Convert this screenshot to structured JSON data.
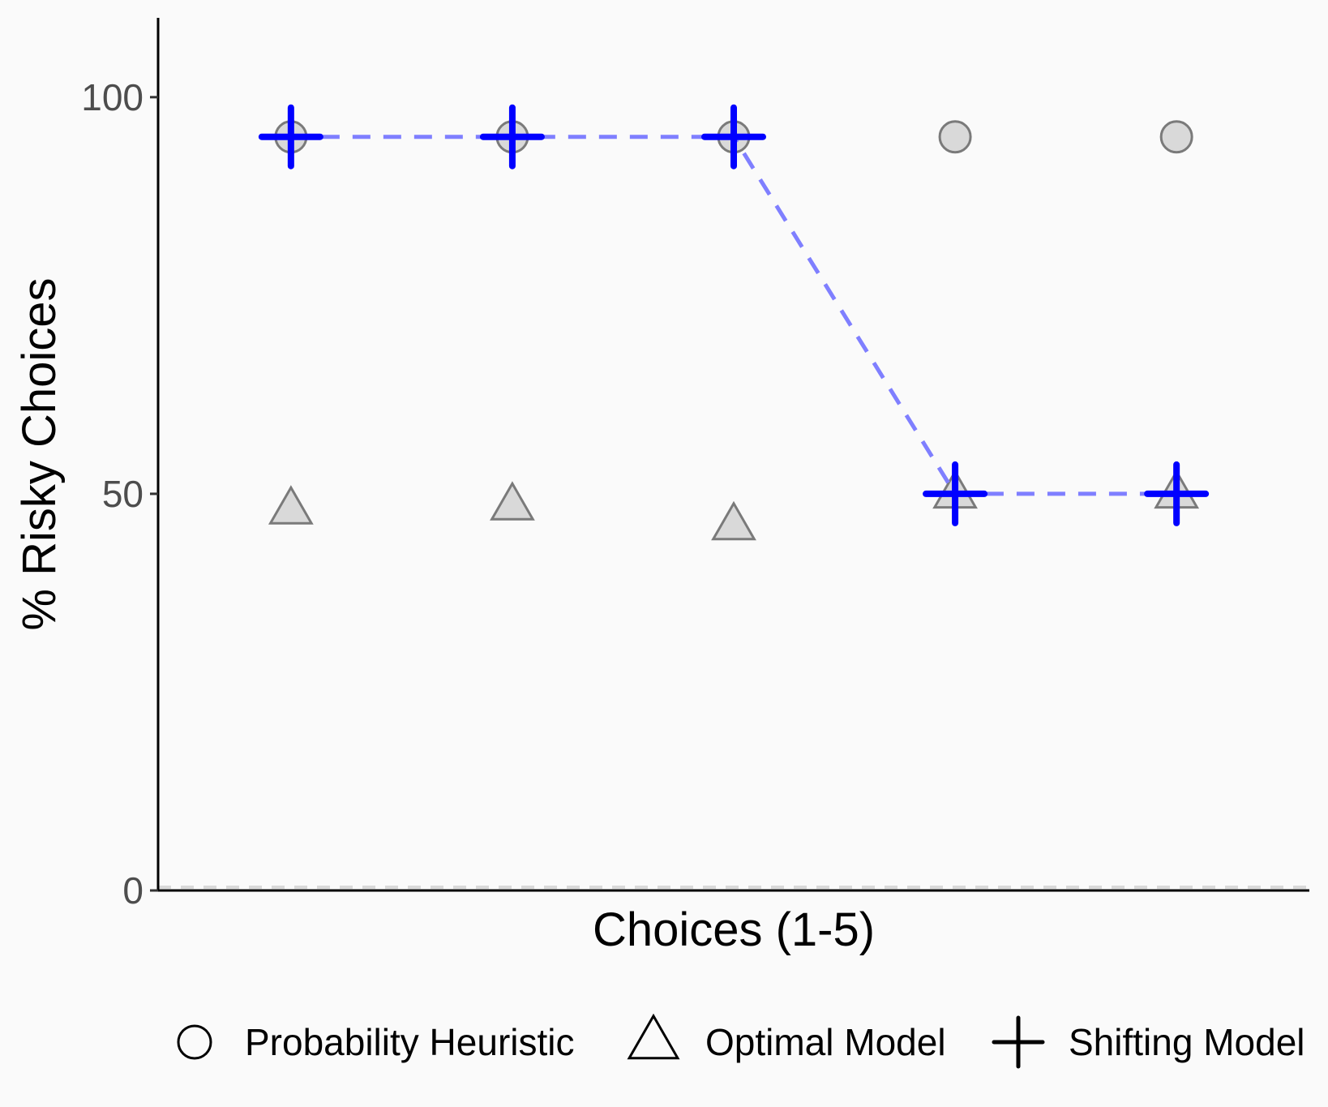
{
  "chart_data": {
    "type": "scatter",
    "title": "",
    "xlabel": "Choices (1-5)",
    "ylabel": "% Risky Choices",
    "x": [
      1,
      2,
      3,
      4,
      5
    ],
    "xlim": [
      0.4,
      5.6
    ],
    "ylim": [
      0,
      110
    ],
    "y_ticks": [
      {
        "value": 0,
        "label": "0"
      },
      {
        "value": 50,
        "label": "50"
      },
      {
        "value": 100,
        "label": "100"
      }
    ],
    "grid": false,
    "reference_line": {
      "y": 0,
      "style": "dashed",
      "color": "#d9d9d9"
    },
    "legend_position": "bottom",
    "series": [
      {
        "name": "Probability Heuristic",
        "marker": "circle",
        "values": [
          95,
          95,
          95,
          95,
          95
        ],
        "fill": "#d9d9d9",
        "stroke": "#7a7a7a"
      },
      {
        "name": "Optimal Model",
        "marker": "triangle",
        "values": [
          48,
          48.5,
          46,
          50,
          50
        ],
        "fill": "#d9d9d9",
        "stroke": "#7a7a7a"
      },
      {
        "name": "Shifting Model",
        "marker": "plus",
        "values": [
          95,
          95,
          95,
          50,
          50
        ],
        "color": "#0000ff",
        "line": "dashed",
        "line_color": "#7f7fff"
      }
    ]
  }
}
